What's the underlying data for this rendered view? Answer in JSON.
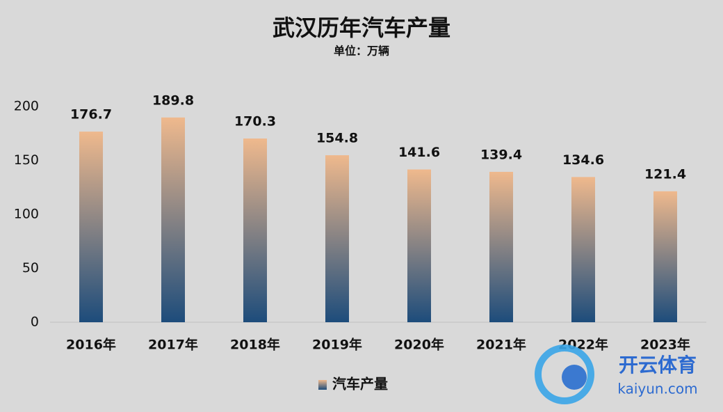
{
  "chart_data": {
    "type": "bar",
    "title": "武汉历年汽车产量",
    "subtitle": "单位：万辆",
    "categories": [
      "2016年",
      "2017年",
      "2018年",
      "2019年",
      "2020年",
      "2021年",
      "2022年",
      "2023年"
    ],
    "series": [
      {
        "name": "汽车产量",
        "color": [
          "#efb98d",
          "#1d4c7b"
        ],
        "values": [
          176.7,
          189.8,
          170.3,
          154.8,
          141.6,
          139.4,
          134.6,
          121.4
        ]
      }
    ],
    "ylim": [
      0,
      200
    ],
    "yticks": [
      0,
      50,
      100,
      150,
      200
    ],
    "grid": false,
    "legend": "bottom"
  },
  "watermark": {
    "brand": "开云体育",
    "url": "kaiyun.com"
  }
}
